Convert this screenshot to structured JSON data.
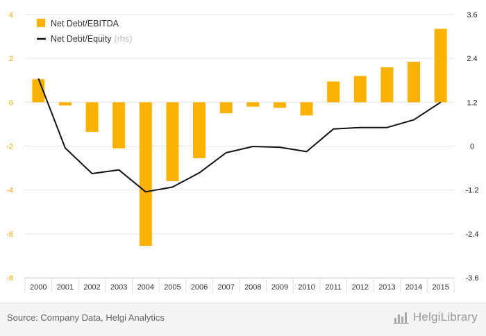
{
  "chart_data": {
    "type": "bar",
    "categories": [
      "2000",
      "2001",
      "2002",
      "2003",
      "2004",
      "2005",
      "2006",
      "2007",
      "2008",
      "2009",
      "2010",
      "2011",
      "2012",
      "2013",
      "2014",
      "2015"
    ],
    "series": [
      {
        "name": "Net Debt/EBITDA",
        "type": "bar",
        "axis": "left",
        "values": [
          1.05,
          -0.15,
          -1.35,
          -2.1,
          -6.55,
          -3.6,
          -2.55,
          -0.5,
          -0.2,
          -0.25,
          -0.6,
          0.95,
          1.2,
          1.6,
          1.85,
          3.35
        ]
      },
      {
        "name": "Net Debt/Equity",
        "type": "line",
        "axis": "right",
        "values": [
          1.85,
          -0.05,
          -0.75,
          -0.65,
          -1.25,
          -1.12,
          -0.73,
          -0.18,
          -0.01,
          -0.03,
          -0.15,
          0.47,
          0.51,
          0.51,
          0.72,
          1.2
        ]
      }
    ],
    "y_left": {
      "min": -8,
      "max": 4,
      "ticks": [
        -8,
        -6,
        -4,
        -2,
        0,
        2,
        4
      ]
    },
    "y_right": {
      "min": -3.6,
      "max": 3.6,
      "ticks": [
        -3.6,
        -2.4,
        -1.2,
        0,
        1.2,
        2.4,
        3.6
      ]
    },
    "legend": {
      "position": "top-left",
      "entries": [
        {
          "label": "Net Debt/EBITDA",
          "suffix": ""
        },
        {
          "label": "Net Debt/Equity",
          "suffix": "(rhs)"
        }
      ]
    },
    "grid": true
  },
  "colors": {
    "bar": "#fab200",
    "line": "#111111",
    "left_axis_text": "#f0a800",
    "right_axis_text": "#222222",
    "grid": "#e6e6e6"
  },
  "footer": {
    "source": "Source: Company Data, Helgi Analytics",
    "brand": "HelgiLibrary",
    "brand_icon": "bar-chart-logo-icon"
  }
}
